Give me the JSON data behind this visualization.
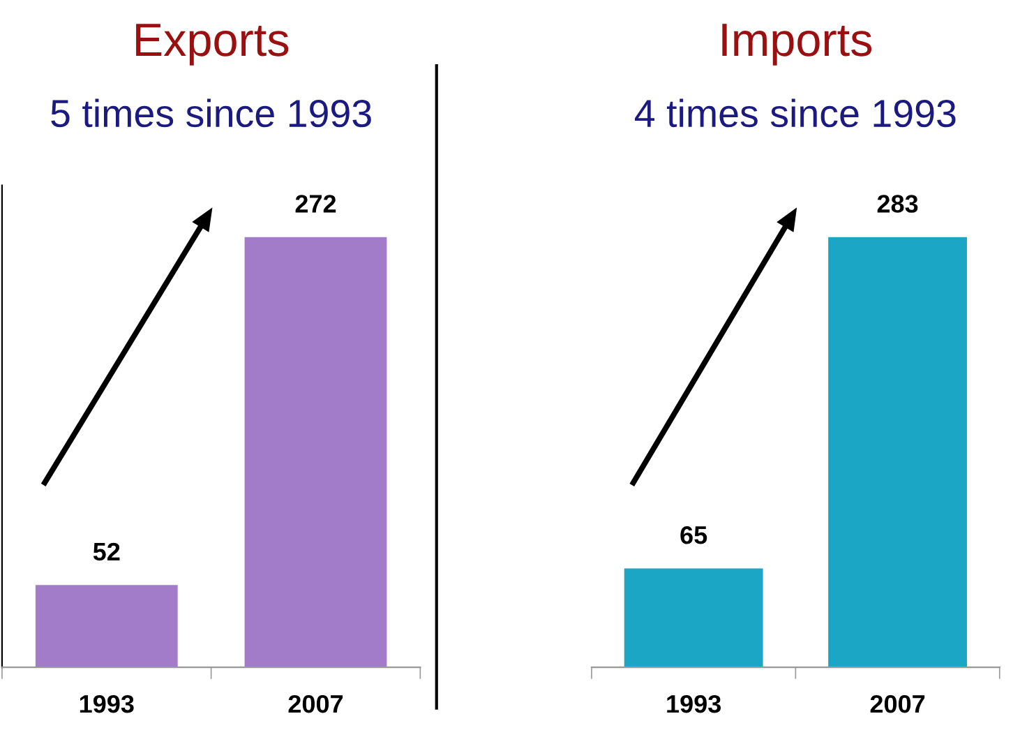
{
  "chart_data": [
    {
      "type": "bar",
      "title": "Exports",
      "subtitle": "5 times since 1993",
      "categories": [
        "1993",
        "2007"
      ],
      "values": [
        52,
        272
      ],
      "color": "#a27bc9",
      "data_labels": true,
      "grid": false,
      "legend": false
    },
    {
      "type": "bar",
      "title": "Imports",
      "subtitle": "4 times since 1993",
      "categories": [
        "1993",
        "2007"
      ],
      "values": [
        65,
        283
      ],
      "color": "#1aa6c4",
      "data_labels": true,
      "grid": false,
      "legend": false
    }
  ]
}
